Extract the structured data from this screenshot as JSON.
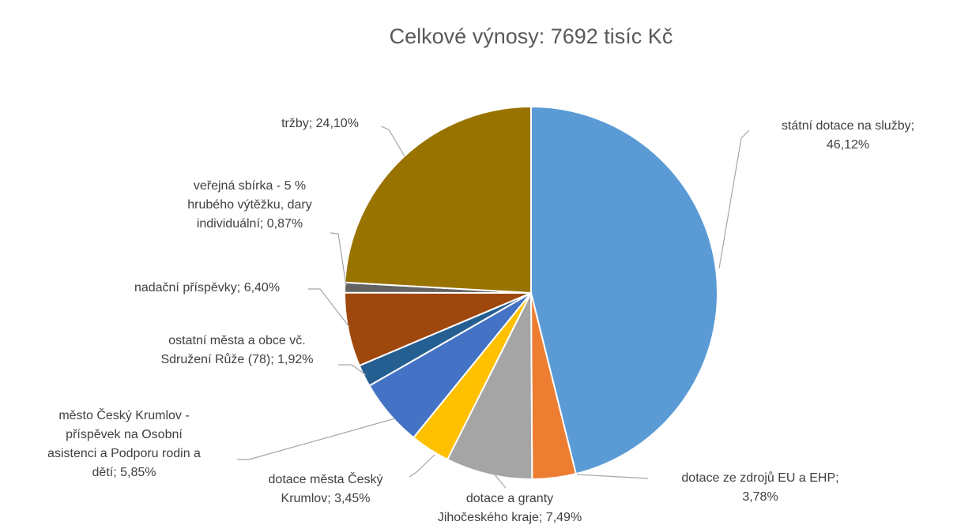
{
  "chart_data": {
    "type": "pie",
    "title": "Celkové výnosy: 7692 tisíc Kč",
    "categories": [
      "státní dotace na služby;",
      "dotace ze zdrojů EU a EHP;",
      "dotace a granty Jihočeského kraje;",
      "dotace města Český Krumlov;",
      "město Český Krumlov - příspěvek na Osobní asistenci a Podporu rodin a dětí;",
      "ostatní města a obce vč. Sdružení Růže (78);",
      "nadační příspěvky;",
      "veřejná sbírka - 5 % hrubého výtěžku, dary individuální;",
      "tržby;"
    ],
    "values": [
      46.12,
      3.78,
      7.49,
      3.45,
      5.85,
      1.92,
      6.4,
      0.87,
      24.1
    ],
    "value_labels": [
      "46,12%",
      "3,78%",
      "7,49%",
      "3,45%",
      "5,85%",
      "1,92%",
      "6,40%",
      "0,87%",
      "24,10%"
    ],
    "colors": [
      "#5b9bd5",
      "#ed7d31",
      "#a5a5a5",
      "#ffc000",
      "#4472c4",
      "#255e91",
      "#9e480e",
      "#636363",
      "#997300"
    ]
  }
}
